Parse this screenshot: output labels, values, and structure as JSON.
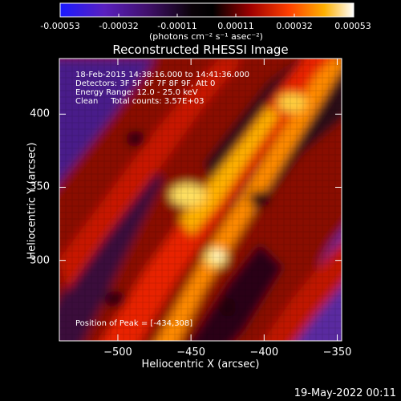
{
  "colorbar": {
    "ticks": [
      "-0.00053",
      "-0.00032",
      "-0.00011",
      "0.00011",
      "0.00032",
      "0.00053"
    ],
    "unit_label": "(photons cm⁻² s⁻¹ asec⁻²)",
    "colors": [
      "#1a1aff",
      "#4a1aa8",
      "#2a0a3a",
      "#000000",
      "#8a0000",
      "#ff3300",
      "#ff9900",
      "#ffff66",
      "#ffffff"
    ]
  },
  "chart_data": {
    "type": "heatmap",
    "title": "Reconstructed RHESSI Image",
    "xlabel": "Heliocentric X (arcsec)",
    "ylabel": "Heliocentric Y (arcsec)",
    "xlim": [
      -540,
      -347
    ],
    "ylim": [
      245,
      438
    ],
    "x_ticks": [
      -500,
      -450,
      -400,
      -350
    ],
    "y_ticks": [
      300,
      350,
      400
    ],
    "annotations": [
      "18-Feb-2015 14:38:16.000 to 14:41:36.000",
      "Detectors: 3F 5F 6F 7F 8F 9F, Att 0",
      "Energy Range: 12.0 - 25.0 keV",
      "Clean     Total counts: 3.57E+03"
    ],
    "peak_label": "Position of Peak = [-434,308]",
    "peak": [
      -434,
      308
    ]
  },
  "footer": {
    "date": "19-May-2022 00:11"
  }
}
